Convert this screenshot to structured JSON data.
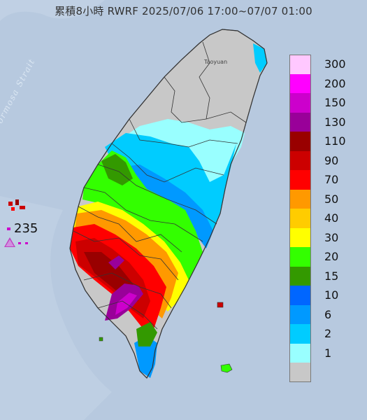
{
  "title": "累積8小時 RWRF 2025/07/06 17:00~07/07 01:00",
  "strait_label": "Formosa Strait",
  "city_label": "Taoyuan",
  "max_value": "235",
  "colors": {
    "sea": "#b9cbe0",
    "land_gray": "#c8c8c8",
    "boundary": "#333333",
    "max_marker": "#c040c0"
  },
  "legend": [
    {
      "label": "300",
      "color": "#ffc8ff"
    },
    {
      "label": "200",
      "color": "#ff00ff"
    },
    {
      "label": "150",
      "color": "#cc00cc"
    },
    {
      "label": "130",
      "color": "#990099"
    },
    {
      "label": "110",
      "color": "#990000"
    },
    {
      "label": "90",
      "color": "#cc0000"
    },
    {
      "label": "70",
      "color": "#ff0000"
    },
    {
      "label": "50",
      "color": "#ff9900"
    },
    {
      "label": "40",
      "color": "#ffcc00"
    },
    {
      "label": "30",
      "color": "#ffff00"
    },
    {
      "label": "20",
      "color": "#33ff00"
    },
    {
      "label": "15",
      "color": "#339900"
    },
    {
      "label": "10",
      "color": "#0066ff"
    },
    {
      "label": "6",
      "color": "#0099ff"
    },
    {
      "label": "2",
      "color": "#00ccff"
    },
    {
      "label": "1",
      "color": "#99ffff"
    },
    {
      "label": "",
      "color": "#c8c8c8"
    }
  ]
}
